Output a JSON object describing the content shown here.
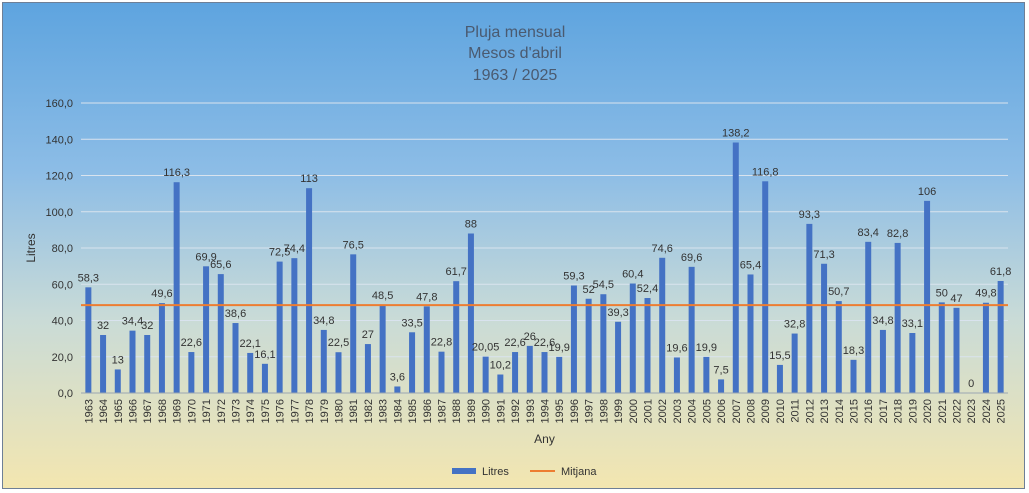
{
  "chart_data": {
    "type": "bar",
    "title_lines": [
      "Pluja mensual",
      "Mesos d'abril",
      "1963 / 2025"
    ],
    "xlabel": "Any",
    "ylabel": "Litres",
    "ylim": [
      0,
      160
    ],
    "yticks": [
      "0,0",
      "20,0",
      "40,0",
      "60,0",
      "80,0",
      "100,0",
      "120,0",
      "140,0",
      "160,0"
    ],
    "grid": true,
    "legend_position": "bottom",
    "categories": [
      "1963",
      "1964",
      "1965",
      "1966",
      "1967",
      "1968",
      "1969",
      "1970",
      "1971",
      "1972",
      "1973",
      "1974",
      "1975",
      "1976",
      "1977",
      "1978",
      "1979",
      "1980",
      "1981",
      "1982",
      "1983",
      "1984",
      "1985",
      "1986",
      "1987",
      "1988",
      "1989",
      "1990",
      "1991",
      "1992",
      "1993",
      "1994",
      "1995",
      "1996",
      "1997",
      "1998",
      "1999",
      "2000",
      "2001",
      "2002",
      "2003",
      "2004",
      "2005",
      "2006",
      "2007",
      "2008",
      "2009",
      "2010",
      "2011",
      "2012",
      "2013",
      "2014",
      "2015",
      "2016",
      "2017",
      "2018",
      "2019",
      "2020",
      "2021",
      "2022",
      "2023",
      "2024",
      "2025"
    ],
    "series": [
      {
        "name": "Litres",
        "color": "#4472c4",
        "values": [
          58.3,
          32,
          13,
          34.4,
          32,
          49.6,
          116.3,
          22.6,
          69.9,
          65.6,
          38.6,
          22.1,
          16.1,
          72.5,
          74.4,
          113,
          34.8,
          22.5,
          76.5,
          27,
          48.5,
          3.6,
          33.5,
          47.8,
          22.8,
          61.7,
          88,
          20.05,
          10.2,
          22.6,
          26,
          22.6,
          19.9,
          59.3,
          52,
          54.5,
          39.3,
          60.4,
          52.4,
          74.6,
          19.6,
          69.6,
          19.9,
          7.5,
          138.2,
          65.4,
          116.8,
          15.5,
          32.8,
          93.3,
          71.3,
          50.7,
          18.3,
          83.4,
          34.8,
          82.8,
          33.1,
          106,
          50,
          47,
          0,
          49.8,
          61.8
        ],
        "labels": [
          "58,3",
          "32",
          "13",
          "34,4",
          "32",
          "49,6",
          "116,3",
          "22,6",
          "69,9",
          "65,6",
          "38,6",
          "22,1",
          "16,1",
          "72,5",
          "74,4",
          "113",
          "34,8",
          "22,5",
          "76,5",
          "27",
          "48,5",
          "3,6",
          "33,5",
          "47,8",
          "22,8",
          "61,7",
          "88",
          "20,05",
          "10,2",
          "22,6",
          "26",
          "22,6",
          "19,9",
          "59,3",
          "52",
          "54,5",
          "39,3",
          "60,4",
          "52,4",
          "74,6",
          "19,6",
          "69,6",
          "19,9",
          "7,5",
          "138,2",
          "65,4",
          "116,8",
          "15,5",
          "32,8",
          "93,3",
          "71,3",
          "50,7",
          "18,3",
          "83,4",
          "34,8",
          "82,8",
          "33,1",
          "106",
          "50",
          "47",
          "0",
          "49,8",
          "61,8"
        ]
      },
      {
        "name": "Mitjana",
        "type": "line",
        "color": "#ed7d31",
        "value": 48.5
      }
    ]
  }
}
